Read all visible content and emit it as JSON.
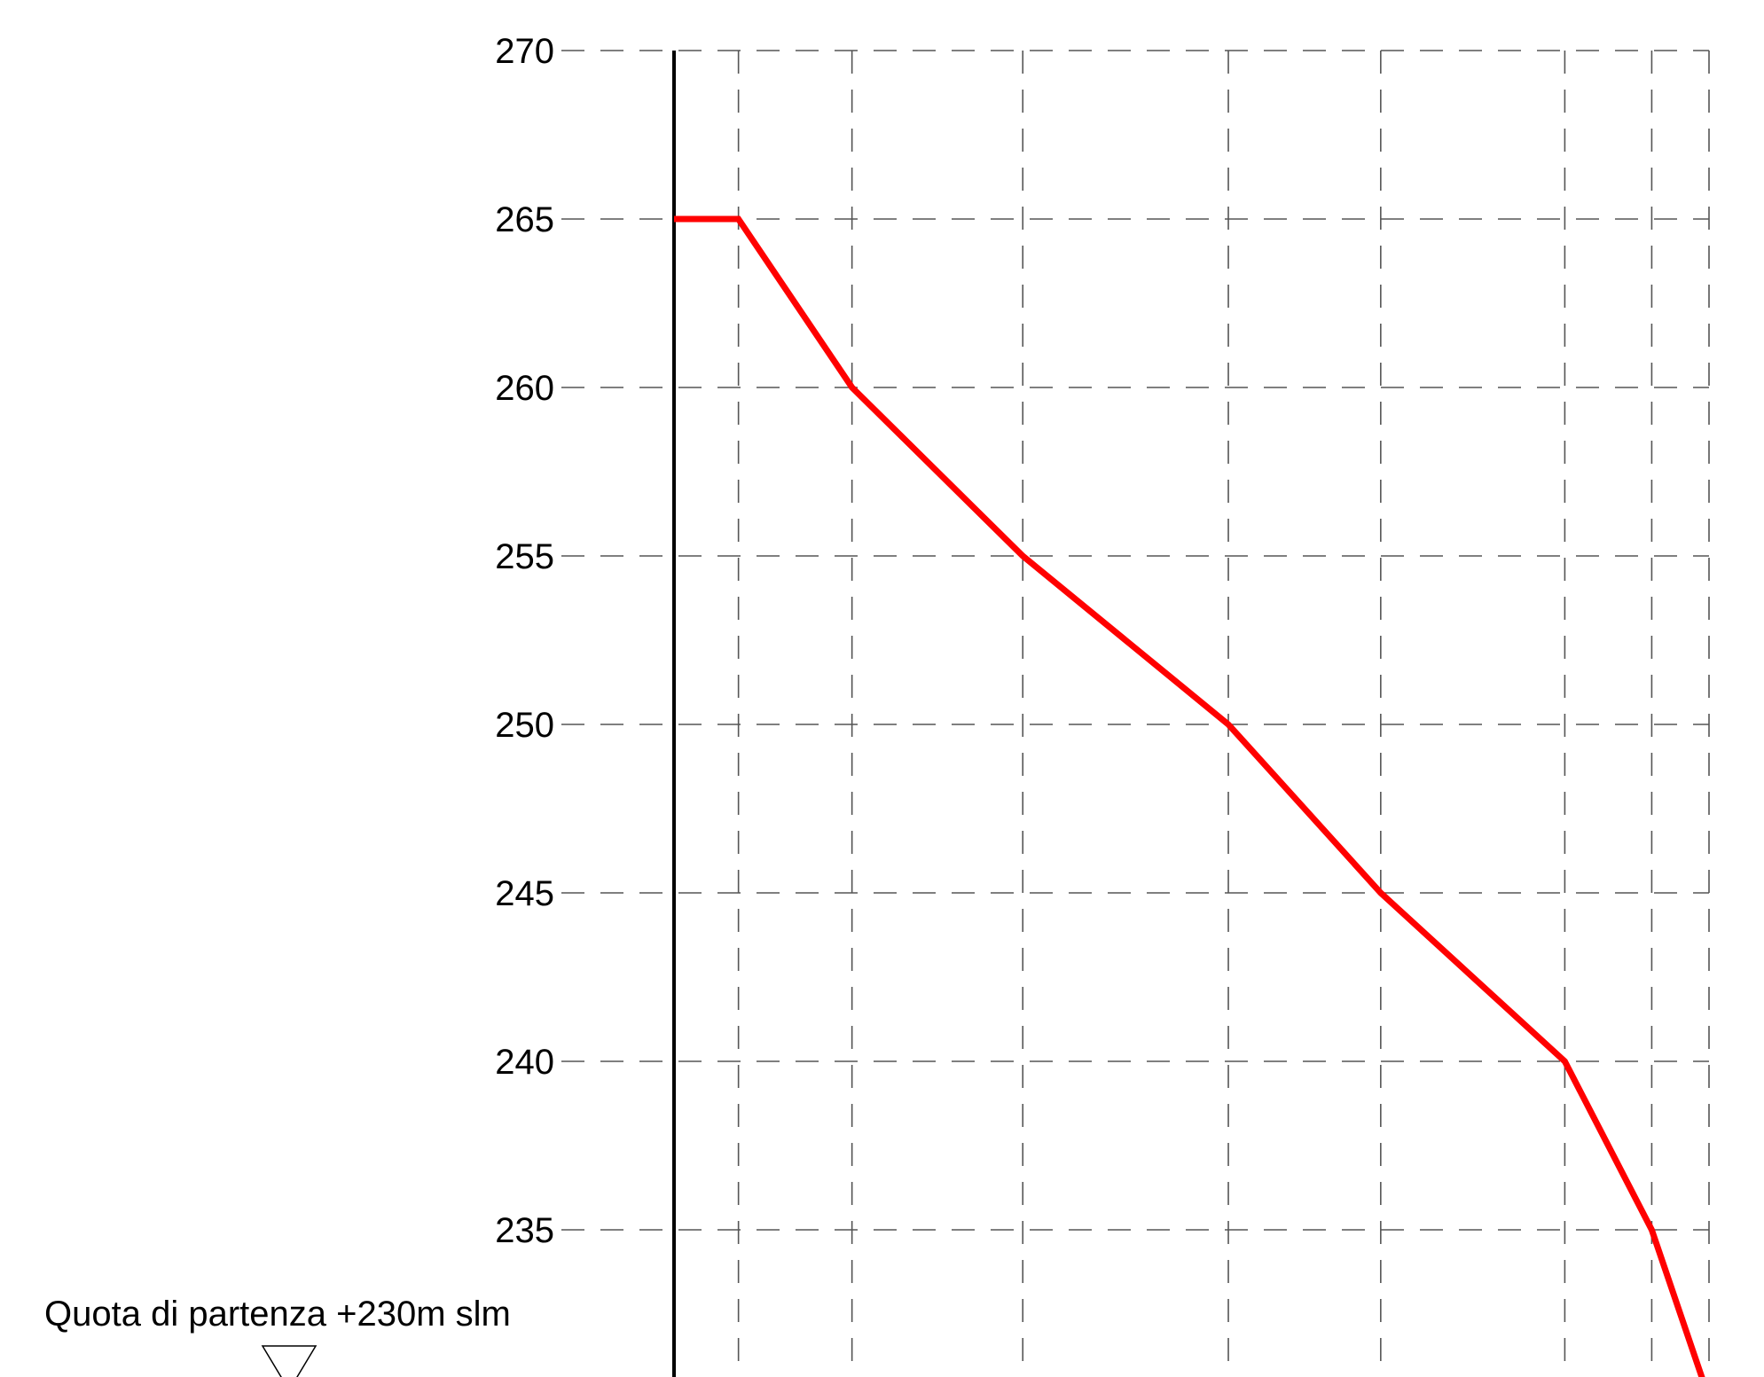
{
  "chart_data": {
    "type": "line",
    "title": "",
    "xlabel": "",
    "ylabel": "",
    "ylim": [
      230,
      270
    ],
    "y_ticks": [
      "270",
      "265",
      "260",
      "255",
      "250",
      "245",
      "240",
      "235"
    ],
    "grid": true,
    "legend": "none",
    "series": [
      {
        "color": "#ff0000",
        "points": [
          {
            "x": 0.0,
            "y": 265
          },
          {
            "x": 0.63,
            "y": 265
          },
          {
            "x": 1.74,
            "y": 260
          },
          {
            "x": 3.41,
            "y": 255
          },
          {
            "x": 5.42,
            "y": 250
          },
          {
            "x": 6.91,
            "y": 245
          },
          {
            "x": 8.71,
            "y": 240
          },
          {
            "x": 9.56,
            "y": 235
          },
          {
            "x": 10.12,
            "y": 230
          }
        ]
      }
    ],
    "x_gridlines": [
      0.63,
      1.74,
      3.41,
      5.42,
      6.91,
      8.71,
      9.56,
      10.12
    ],
    "xlim": [
      0,
      10.12
    ],
    "annotation": {
      "text": "Quota di partenza +230m slm",
      "icon": "triangle-down-icon"
    },
    "colors": {
      "line": "#ff0000",
      "axis": "#000000",
      "grid": "#555555"
    }
  }
}
